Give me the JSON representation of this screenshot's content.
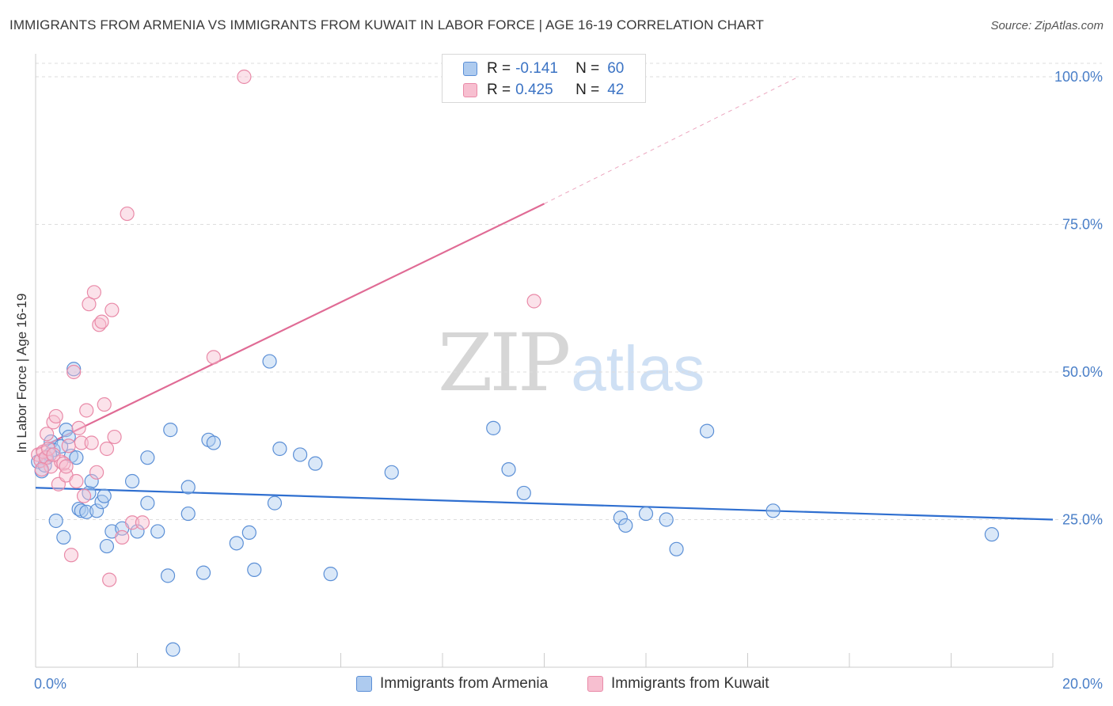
{
  "title": "IMMIGRANTS FROM ARMENIA VS IMMIGRANTS FROM KUWAIT IN LABOR FORCE | AGE 16-19 CORRELATION CHART",
  "source": "Source: ZipAtlas.com",
  "watermark": {
    "zip": "ZIP",
    "atlas": "atlas"
  },
  "legend": {
    "armenia": {
      "r_label": "R =",
      "r_value": "-0.141",
      "n_label": "N =",
      "n_value": "60"
    },
    "kuwait": {
      "r_label": "R =",
      "r_value": "0.425",
      "n_label": "N =",
      "n_value": "42"
    }
  },
  "colors": {
    "armenia_fill": "#aecbef",
    "armenia_stroke": "#5b8fd6",
    "armenia_line": "#2f6fd0",
    "kuwait_fill": "#f7bfd0",
    "kuwait_stroke": "#e98aa8",
    "kuwait_line": "#e06b95",
    "tick_label": "#4a7fc8",
    "grid": "#dddddd"
  },
  "chart_data": {
    "type": "scatter",
    "title": "IMMIGRANTS FROM ARMENIA VS IMMIGRANTS FROM KUWAIT IN LABOR FORCE | AGE 16-19 CORRELATION CHART",
    "xlabel": "",
    "ylabel": "In Labor Force | Age 16-19",
    "xlim": [
      0,
      20
    ],
    "ylim": [
      0,
      100
    ],
    "x_tick_labels": [
      "0.0%",
      "20.0%"
    ],
    "y_ticks": [
      25,
      50,
      75,
      100
    ],
    "y_tick_labels": [
      "25.0%",
      "50.0%",
      "75.0%",
      "100.0%"
    ],
    "grid": true,
    "legend_position": "top-center",
    "series": [
      {
        "name": "Immigrants from Armenia",
        "color": "#5b8fd6",
        "trend": {
          "x": [
            0,
            20
          ],
          "y": [
            30.4,
            25.0
          ],
          "style": "solid"
        },
        "points": [
          [
            0.05,
            34.8
          ],
          [
            0.12,
            33.2
          ],
          [
            0.18,
            34.2
          ],
          [
            0.22,
            35.5
          ],
          [
            0.3,
            38.2
          ],
          [
            0.35,
            36.8
          ],
          [
            0.4,
            24.8
          ],
          [
            0.5,
            37.4
          ],
          [
            0.55,
            22.0
          ],
          [
            0.6,
            40.2
          ],
          [
            0.65,
            39.0
          ],
          [
            0.7,
            35.8
          ],
          [
            0.75,
            50.5
          ],
          [
            0.8,
            35.5
          ],
          [
            0.85,
            26.8
          ],
          [
            0.9,
            26.5
          ],
          [
            1.0,
            26.3
          ],
          [
            1.05,
            29.5
          ],
          [
            1.1,
            31.5
          ],
          [
            1.2,
            26.5
          ],
          [
            1.3,
            28.0
          ],
          [
            1.35,
            29.0
          ],
          [
            1.4,
            20.5
          ],
          [
            1.5,
            23.0
          ],
          [
            1.7,
            23.5
          ],
          [
            1.9,
            31.5
          ],
          [
            2.0,
            23.0
          ],
          [
            2.2,
            35.5
          ],
          [
            2.2,
            27.8
          ],
          [
            2.4,
            23.0
          ],
          [
            2.6,
            15.5
          ],
          [
            2.65,
            40.2
          ],
          [
            2.7,
            3.0
          ],
          [
            3.0,
            26.0
          ],
          [
            3.0,
            30.5
          ],
          [
            3.3,
            16.0
          ],
          [
            3.4,
            38.5
          ],
          [
            3.5,
            38.0
          ],
          [
            3.95,
            21.0
          ],
          [
            4.2,
            22.8
          ],
          [
            4.3,
            16.5
          ],
          [
            4.6,
            51.8
          ],
          [
            4.7,
            27.8
          ],
          [
            4.8,
            37.0
          ],
          [
            5.2,
            36.0
          ],
          [
            5.5,
            34.5
          ],
          [
            5.8,
            15.8
          ],
          [
            7.0,
            33.0
          ],
          [
            9.0,
            40.5
          ],
          [
            9.3,
            33.5
          ],
          [
            9.6,
            29.5
          ],
          [
            11.5,
            25.3
          ],
          [
            11.6,
            24.0
          ],
          [
            12.0,
            26.0
          ],
          [
            12.4,
            25.0
          ],
          [
            12.6,
            20.0
          ],
          [
            13.2,
            40.0
          ],
          [
            14.5,
            26.5
          ],
          [
            18.8,
            22.5
          ],
          [
            0.28,
            36.0
          ]
        ]
      },
      {
        "name": "Immigrants from Kuwait",
        "color": "#e98aa8",
        "trend": {
          "x": [
            0,
            10
          ],
          "y": [
            36.8,
            78.5
          ],
          "style": "solid",
          "extended_x": [
            10,
            15
          ],
          "extended_y": [
            78.5,
            100
          ]
        },
        "points": [
          [
            0.05,
            36.0
          ],
          [
            0.1,
            35.0
          ],
          [
            0.15,
            36.5
          ],
          [
            0.2,
            35.5
          ],
          [
            0.25,
            37.0
          ],
          [
            0.3,
            34.0
          ],
          [
            0.35,
            41.5
          ],
          [
            0.4,
            42.5
          ],
          [
            0.45,
            31.0
          ],
          [
            0.5,
            34.8
          ],
          [
            0.55,
            34.5
          ],
          [
            0.6,
            32.5
          ],
          [
            0.65,
            37.5
          ],
          [
            0.7,
            19.0
          ],
          [
            0.75,
            50.0
          ],
          [
            0.8,
            31.5
          ],
          [
            0.85,
            40.5
          ],
          [
            0.9,
            38.0
          ],
          [
            0.95,
            29.0
          ],
          [
            1.0,
            43.5
          ],
          [
            1.05,
            61.5
          ],
          [
            1.1,
            38.0
          ],
          [
            1.15,
            63.5
          ],
          [
            1.2,
            33.0
          ],
          [
            1.25,
            58.0
          ],
          [
            1.3,
            58.5
          ],
          [
            1.35,
            44.5
          ],
          [
            1.4,
            37.0
          ],
          [
            1.45,
            14.8
          ],
          [
            1.5,
            60.5
          ],
          [
            1.55,
            39.0
          ],
          [
            1.7,
            22.0
          ],
          [
            1.8,
            76.8
          ],
          [
            1.9,
            24.5
          ],
          [
            2.1,
            24.5
          ],
          [
            3.5,
            52.5
          ],
          [
            4.1,
            100.0
          ],
          [
            9.8,
            62.0
          ],
          [
            0.22,
            39.5
          ],
          [
            0.35,
            36.0
          ],
          [
            0.6,
            34.0
          ],
          [
            0.12,
            33.5
          ]
        ]
      }
    ]
  }
}
